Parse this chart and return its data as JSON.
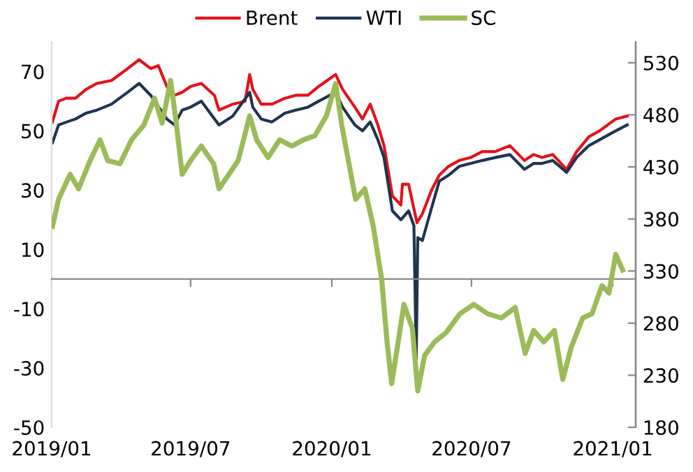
{
  "chart_data": {
    "type": "line",
    "series": [
      {
        "name": "Brent",
        "color": "#e3121b",
        "axis": "y",
        "x": [
          "2019-01-02",
          "2019-01-10",
          "2019-01-20",
          "2019-02-01",
          "2019-02-15",
          "2019-03-01",
          "2019-03-20",
          "2019-04-10",
          "2019-04-25",
          "2019-05-10",
          "2019-05-20",
          "2019-05-31",
          "2019-06-10",
          "2019-06-20",
          "2019-07-01",
          "2019-07-15",
          "2019-08-01",
          "2019-08-07",
          "2019-08-25",
          "2019-09-10",
          "2019-09-16",
          "2019-09-20",
          "2019-10-01",
          "2019-10-15",
          "2019-11-01",
          "2019-11-15",
          "2019-12-01",
          "2019-12-15",
          "2020-01-06",
          "2020-01-15",
          "2020-01-31",
          "2020-02-10",
          "2020-02-20",
          "2020-03-01",
          "2020-03-09",
          "2020-03-20",
          "2020-03-31",
          "2020-04-02",
          "2020-04-10",
          "2020-04-21",
          "2020-04-28",
          "2020-05-10",
          "2020-05-20",
          "2020-06-01",
          "2020-06-15",
          "2020-06-30",
          "2020-07-15",
          "2020-08-01",
          "2020-08-20",
          "2020-09-08",
          "2020-09-20",
          "2020-10-01",
          "2020-10-15",
          "2020-11-02",
          "2020-11-15",
          "2020-12-01",
          "2020-12-15",
          "2021-01-05",
          "2021-01-20"
        ],
        "values": [
          53,
          60,
          61,
          61,
          64,
          66,
          67,
          71,
          74,
          71,
          72,
          65,
          62,
          63,
          65,
          66,
          62,
          57,
          59,
          60,
          69,
          64,
          59,
          59,
          61,
          62,
          62,
          65,
          69,
          64,
          58,
          54,
          59,
          52,
          45,
          28,
          25,
          32,
          32,
          19,
          22,
          30,
          35,
          38,
          40,
          41,
          43,
          43,
          45,
          40,
          42,
          41,
          42,
          37,
          43,
          48,
          50,
          54,
          55
        ]
      },
      {
        "name": "WTI",
        "color": "#1f3450",
        "axis": "y",
        "x": [
          "2019-01-02",
          "2019-01-10",
          "2019-02-01",
          "2019-02-15",
          "2019-03-01",
          "2019-03-20",
          "2019-04-10",
          "2019-04-25",
          "2019-05-10",
          "2019-05-31",
          "2019-06-10",
          "2019-06-20",
          "2019-07-01",
          "2019-07-15",
          "2019-08-07",
          "2019-08-25",
          "2019-09-16",
          "2019-09-20",
          "2019-10-01",
          "2019-10-15",
          "2019-11-01",
          "2019-11-15",
          "2019-12-01",
          "2019-12-15",
          "2020-01-06",
          "2020-01-15",
          "2020-01-31",
          "2020-02-10",
          "2020-02-20",
          "2020-03-01",
          "2020-03-09",
          "2020-03-20",
          "2020-03-31",
          "2020-04-10",
          "2020-04-17",
          "2020-04-20",
          "2020-04-22",
          "2020-04-28",
          "2020-05-10",
          "2020-05-20",
          "2020-06-01",
          "2020-06-15",
          "2020-06-30",
          "2020-07-15",
          "2020-08-01",
          "2020-08-20",
          "2020-09-08",
          "2020-09-20",
          "2020-10-01",
          "2020-10-15",
          "2020-11-02",
          "2020-11-15",
          "2020-12-01",
          "2020-12-15",
          "2021-01-05",
          "2021-01-20"
        ],
        "values": [
          46,
          52,
          54,
          56,
          57,
          59,
          63,
          66,
          62,
          54,
          52,
          57,
          58,
          60,
          52,
          55,
          63,
          58,
          54,
          53,
          56,
          57,
          58,
          60,
          63,
          58,
          52,
          50,
          53,
          47,
          41,
          23,
          20,
          23,
          18,
          -27,
          14,
          13,
          24,
          33,
          35,
          38,
          39,
          40,
          41,
          42,
          37,
          39,
          39,
          40,
          36,
          41,
          45,
          47,
          50,
          52
        ]
      },
      {
        "name": "SC",
        "color": "#9bbb59",
        "axis": "y2",
        "x": [
          "2019-01-02",
          "2019-01-10",
          "2019-01-25",
          "2019-02-05",
          "2019-02-20",
          "2019-03-05",
          "2019-03-15",
          "2019-03-31",
          "2019-04-15",
          "2019-05-01",
          "2019-05-15",
          "2019-05-25",
          "2019-06-05",
          "2019-06-12",
          "2019-06-20",
          "2019-07-01",
          "2019-07-15",
          "2019-07-31",
          "2019-08-07",
          "2019-08-20",
          "2019-09-01",
          "2019-09-16",
          "2019-09-25",
          "2019-10-10",
          "2019-10-25",
          "2019-11-10",
          "2019-11-25",
          "2019-12-10",
          "2019-12-25",
          "2020-01-06",
          "2020-01-14",
          "2020-02-01",
          "2020-02-13",
          "2020-02-24",
          "2020-03-06",
          "2020-03-13",
          "2020-03-19",
          "2020-03-26",
          "2020-04-04",
          "2020-04-15",
          "2020-04-22",
          "2020-05-01",
          "2020-05-14",
          "2020-05-29",
          "2020-06-16",
          "2020-07-04",
          "2020-07-22",
          "2020-08-09",
          "2020-08-27",
          "2020-09-09",
          "2020-09-20",
          "2020-10-03",
          "2020-10-17",
          "2020-10-28",
          "2020-11-08",
          "2020-11-23",
          "2020-12-05",
          "2020-12-18",
          "2020-12-27",
          "2021-01-05",
          "2021-01-14"
        ],
        "values": [
          373,
          399,
          423,
          409,
          436,
          456,
          436,
          433,
          456,
          470,
          496,
          472,
          513,
          474,
          423,
          436,
          450,
          433,
          409,
          423,
          436,
          479,
          456,
          439,
          456,
          450,
          456,
          460,
          479,
          510,
          470,
          399,
          409,
          373,
          322,
          262,
          222,
          255,
          298,
          275,
          215,
          249,
          262,
          271,
          289,
          298,
          289,
          285,
          295,
          251,
          273,
          262,
          273,
          226,
          257,
          285,
          289,
          316,
          309,
          346,
          331
        ]
      }
    ],
    "xlim": [
      "2019-01-01",
      "2021-01-31"
    ],
    "xticks": [
      {
        "value": "2019-01-01",
        "label": "2019/01"
      },
      {
        "value": "2019-07-01",
        "label": "2019/07"
      },
      {
        "value": "2020-01-01",
        "label": "2020/01"
      },
      {
        "value": "2020-07-01",
        "label": "2020/07"
      },
      {
        "value": "2021-01-01",
        "label": "2021/01"
      }
    ],
    "ylim": [
      -50,
      80
    ],
    "yticks": [
      -50,
      -30,
      -10,
      10,
      30,
      50,
      70
    ],
    "y2lim": [
      180,
      550
    ],
    "y2ticks": [
      180,
      230,
      280,
      330,
      380,
      430,
      480,
      530
    ],
    "legend": "top",
    "grid": false,
    "marker": "none",
    "line_style": "solid"
  }
}
